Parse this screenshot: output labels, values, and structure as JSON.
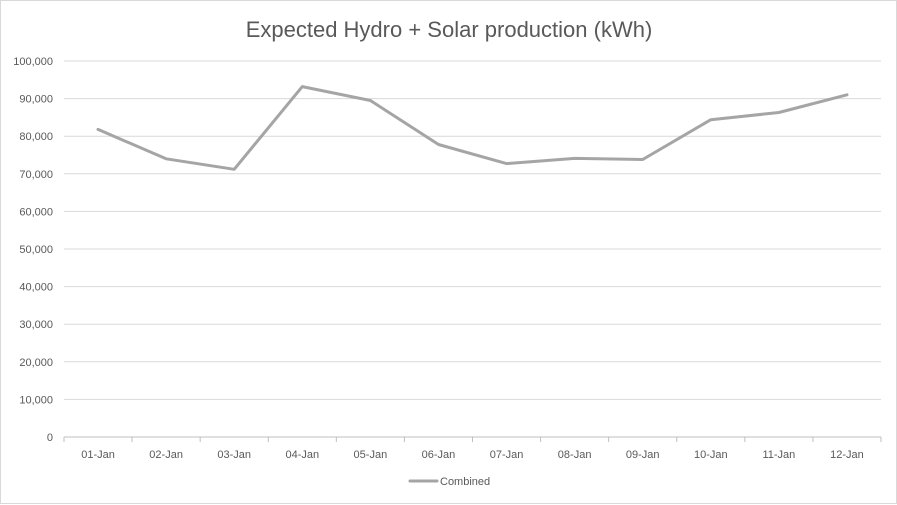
{
  "chart_data": {
    "type": "line",
    "title": "Expected Hydro + Solar production  (kWh)",
    "xlabel": "",
    "ylabel": "",
    "categories": [
      "01-Jan",
      "02-Jan",
      "03-Jan",
      "04-Jan",
      "05-Jan",
      "06-Jan",
      "07-Jan",
      "08-Jan",
      "09-Jan",
      "10-Jan",
      "11-Jan",
      "12-Jan"
    ],
    "series": [
      {
        "name": "Combined",
        "color": "#a5a5a5",
        "values": [
          81800,
          74000,
          71200,
          93200,
          89500,
          77800,
          72700,
          74100,
          73800,
          84400,
          86300,
          91000
        ]
      }
    ],
    "ylim": [
      0,
      100000
    ],
    "yticks": [
      0,
      10000,
      20000,
      30000,
      40000,
      50000,
      60000,
      70000,
      80000,
      90000,
      100000
    ],
    "ytick_labels": [
      "0",
      "10,000",
      "20,000",
      "30,000",
      "40,000",
      "50,000",
      "60,000",
      "70,000",
      "80,000",
      "90,000",
      "100,000"
    ],
    "grid": true,
    "legend_position": "bottom",
    "colors": {
      "gridline": "#d9d9d9",
      "axis": "#bfbfbf",
      "text": "#595959"
    }
  }
}
